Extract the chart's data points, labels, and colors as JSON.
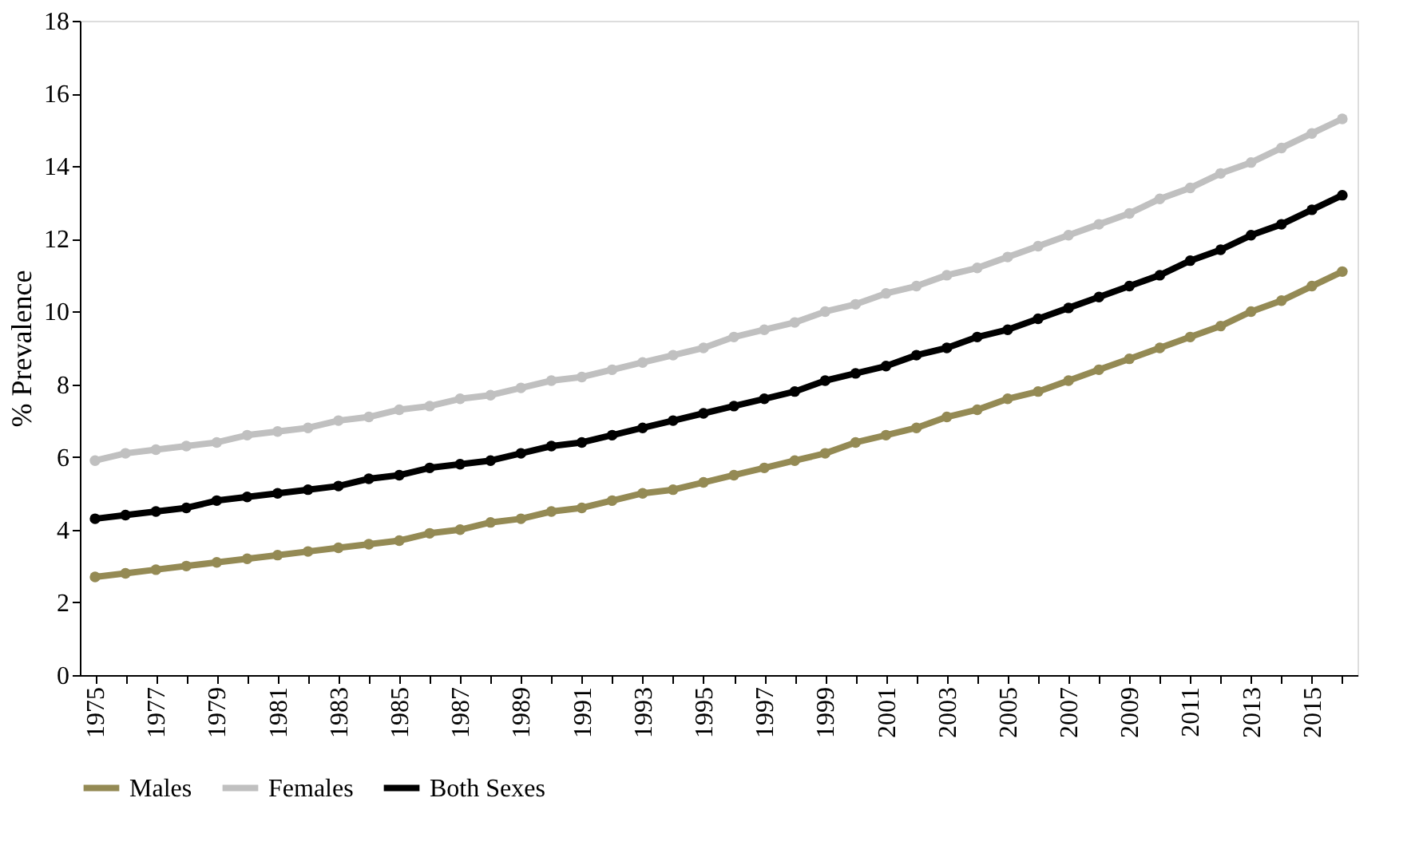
{
  "chart_data": {
    "type": "line",
    "ylabel": "% Prevalence",
    "categories": [
      "1975",
      null,
      "1977",
      null,
      "1979",
      null,
      "1981",
      null,
      "1983",
      null,
      "1985",
      null,
      "1987",
      null,
      "1989",
      null,
      "1991",
      null,
      "1993",
      null,
      "1995",
      null,
      "1997",
      null,
      "1999",
      null,
      "2001",
      null,
      "2003",
      null,
      "2005",
      null,
      "2007",
      null,
      "2009",
      null,
      "2011",
      null,
      "2013",
      null,
      "2015",
      null
    ],
    "series": [
      {
        "name": "Males",
        "color": "#948a54",
        "values": [
          2.7,
          2.8,
          2.9,
          3.0,
          3.1,
          3.2,
          3.3,
          3.4,
          3.5,
          3.6,
          3.7,
          3.9,
          4.0,
          4.2,
          4.3,
          4.5,
          4.6,
          4.8,
          5.0,
          5.1,
          5.3,
          5.5,
          5.7,
          5.9,
          6.1,
          6.4,
          6.6,
          6.8,
          7.1,
          7.3,
          7.6,
          7.8,
          8.1,
          8.4,
          8.7,
          9.0,
          9.3,
          9.6,
          10.0,
          10.3,
          10.7,
          11.1
        ]
      },
      {
        "name": "Females",
        "color": "#c0c0c0",
        "values": [
          5.9,
          6.1,
          6.2,
          6.3,
          6.4,
          6.6,
          6.7,
          6.8,
          7.0,
          7.1,
          7.3,
          7.4,
          7.6,
          7.7,
          7.9,
          8.1,
          8.2,
          8.4,
          8.6,
          8.8,
          9.0,
          9.3,
          9.5,
          9.7,
          10.0,
          10.2,
          10.5,
          10.7,
          11.0,
          11.2,
          11.5,
          11.8,
          12.1,
          12.4,
          12.7,
          13.1,
          13.4,
          13.8,
          14.1,
          14.5,
          14.9,
          15.3
        ]
      },
      {
        "name": "Both Sexes",
        "color": "#000000",
        "values": [
          4.3,
          4.4,
          4.5,
          4.6,
          4.8,
          4.9,
          5.0,
          5.1,
          5.2,
          5.4,
          5.5,
          5.7,
          5.8,
          5.9,
          6.1,
          6.3,
          6.4,
          6.6,
          6.8,
          7.0,
          7.2,
          7.4,
          7.6,
          7.8,
          8.1,
          8.3,
          8.5,
          8.8,
          9.0,
          9.3,
          9.5,
          9.8,
          10.1,
          10.4,
          10.7,
          11.0,
          11.4,
          11.7,
          12.1,
          12.4,
          12.8,
          13.2
        ]
      }
    ],
    "ylim": [
      0,
      18
    ],
    "yticks": [
      0,
      2,
      4,
      6,
      8,
      10,
      12,
      14,
      16,
      18
    ],
    "grid": false,
    "legend": "bottom",
    "marker": "circle",
    "line_style": "solid"
  }
}
